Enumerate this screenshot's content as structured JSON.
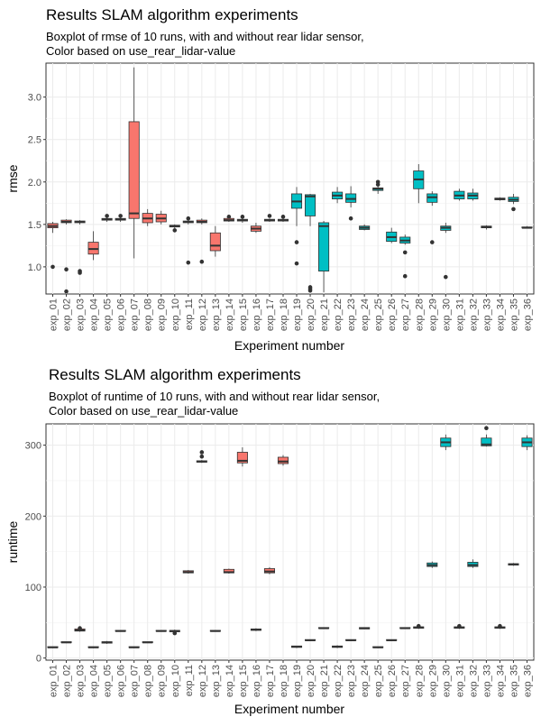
{
  "colors": {
    "false": "#F8766D",
    "true": "#00BFC4"
  },
  "chart_data": [
    {
      "type": "boxplot",
      "title": "Results SLAM algorithm experiments",
      "subtitle_lines": [
        "Boxplot of rmse of 10 runs, with and without rear lidar sensor,",
        "Color based on use_rear_lidar-value"
      ],
      "xlabel": "Experiment number",
      "ylabel": "rmse",
      "ylim": [
        0.68,
        3.4
      ],
      "yticks": [
        1.0,
        1.5,
        2.0,
        2.5,
        3.0
      ],
      "ytick_labels": [
        "1.0",
        "1.5",
        "2.0",
        "2.5",
        "3.0"
      ],
      "grid": true,
      "legend": "none",
      "categories": [
        "exp_01",
        "exp_02",
        "exp_03",
        "exp_04",
        "exp_05",
        "exp_06",
        "exp_07",
        "exp_08",
        "exp_09",
        "exp_10",
        "exp_11",
        "exp_12",
        "exp_13",
        "exp_14",
        "exp_15",
        "exp_16",
        "exp_17",
        "exp_18",
        "exp_19",
        "exp_20",
        "exp_21",
        "exp_22",
        "exp_23",
        "exp_24",
        "exp_25",
        "exp_26",
        "exp_27",
        "exp_28",
        "exp_29",
        "exp_30",
        "exp_31",
        "exp_32",
        "exp_33",
        "exp_34",
        "exp_35",
        "exp_36"
      ],
      "use_rear_lidar": [
        false,
        false,
        false,
        false,
        false,
        false,
        false,
        false,
        false,
        false,
        false,
        false,
        false,
        false,
        false,
        false,
        false,
        false,
        true,
        true,
        true,
        true,
        true,
        true,
        true,
        true,
        true,
        true,
        true,
        true,
        true,
        true,
        true,
        true,
        true,
        true
      ],
      "boxes": [
        {
          "min": 1.4,
          "q1": 1.46,
          "median": 1.48,
          "q3": 1.51,
          "max": 1.53,
          "outliers": [
            1.0
          ]
        },
        {
          "min": 1.5,
          "q1": 1.52,
          "median": 1.53,
          "q3": 1.55,
          "max": 1.56,
          "outliers": [
            0.97,
            0.71
          ]
        },
        {
          "min": 1.5,
          "q1": 1.52,
          "median": 1.53,
          "q3": 1.54,
          "max": 1.55,
          "outliers": [
            0.95,
            0.93
          ]
        },
        {
          "min": 1.08,
          "q1": 1.15,
          "median": 1.21,
          "q3": 1.29,
          "max": 1.42,
          "outliers": []
        },
        {
          "min": 1.53,
          "q1": 1.55,
          "median": 1.56,
          "q3": 1.57,
          "max": 1.59,
          "outliers": [
            1.6
          ]
        },
        {
          "min": 1.53,
          "q1": 1.55,
          "median": 1.56,
          "q3": 1.57,
          "max": 1.58,
          "outliers": [
            1.6
          ]
        },
        {
          "min": 1.1,
          "q1": 1.57,
          "median": 1.63,
          "q3": 2.71,
          "max": 3.35,
          "outliers": []
        },
        {
          "min": 1.48,
          "q1": 1.52,
          "median": 1.57,
          "q3": 1.63,
          "max": 1.68,
          "outliers": []
        },
        {
          "min": 1.5,
          "q1": 1.53,
          "median": 1.57,
          "q3": 1.62,
          "max": 1.66,
          "outliers": []
        },
        {
          "min": 1.45,
          "q1": 1.47,
          "median": 1.48,
          "q3": 1.49,
          "max": 1.5,
          "outliers": [
            1.43
          ]
        },
        {
          "min": 1.5,
          "q1": 1.52,
          "median": 1.53,
          "q3": 1.54,
          "max": 1.55,
          "outliers": [
            1.57,
            1.05
          ]
        },
        {
          "min": 1.5,
          "q1": 1.52,
          "median": 1.53,
          "q3": 1.55,
          "max": 1.57,
          "outliers": [
            1.06
          ]
        },
        {
          "min": 1.12,
          "q1": 1.19,
          "median": 1.25,
          "q3": 1.4,
          "max": 1.48,
          "outliers": []
        },
        {
          "min": 1.53,
          "q1": 1.54,
          "median": 1.55,
          "q3": 1.57,
          "max": 1.58,
          "outliers": [
            1.59
          ]
        },
        {
          "min": 1.52,
          "q1": 1.54,
          "median": 1.55,
          "q3": 1.56,
          "max": 1.57,
          "outliers": [
            1.59
          ]
        },
        {
          "min": 1.4,
          "q1": 1.42,
          "median": 1.45,
          "q3": 1.48,
          "max": 1.52,
          "outliers": []
        },
        {
          "min": 1.53,
          "q1": 1.54,
          "median": 1.55,
          "q3": 1.56,
          "max": 1.57,
          "outliers": [
            1.6
          ]
        },
        {
          "min": 1.53,
          "q1": 1.54,
          "median": 1.55,
          "q3": 1.56,
          "max": 1.57,
          "outliers": [
            1.59
          ]
        },
        {
          "min": 1.48,
          "q1": 1.69,
          "median": 1.77,
          "q3": 1.86,
          "max": 1.94,
          "outliers": [
            1.29,
            1.04
          ]
        },
        {
          "min": 1.48,
          "q1": 1.6,
          "median": 1.83,
          "q3": 1.85,
          "max": 1.86,
          "outliers": [
            0.76,
            0.74,
            0.72
          ]
        },
        {
          "min": 0.7,
          "q1": 0.95,
          "median": 1.48,
          "q3": 1.52,
          "max": 1.54,
          "outliers": []
        },
        {
          "min": 1.75,
          "q1": 1.8,
          "median": 1.84,
          "q3": 1.88,
          "max": 1.94,
          "outliers": []
        },
        {
          "min": 1.7,
          "q1": 1.76,
          "median": 1.8,
          "q3": 1.86,
          "max": 1.95,
          "outliers": [
            1.57
          ]
        },
        {
          "min": 1.43,
          "q1": 1.44,
          "median": 1.46,
          "q3": 1.48,
          "max": 1.5,
          "outliers": []
        },
        {
          "min": 1.86,
          "q1": 1.9,
          "median": 1.92,
          "q3": 1.93,
          "max": 1.95,
          "outliers": [
            2.0,
            1.97
          ]
        },
        {
          "min": 1.28,
          "q1": 1.3,
          "median": 1.35,
          "q3": 1.41,
          "max": 1.46,
          "outliers": []
        },
        {
          "min": 1.26,
          "q1": 1.28,
          "median": 1.31,
          "q3": 1.35,
          "max": 1.38,
          "outliers": [
            1.17,
            0.89
          ]
        },
        {
          "min": 1.75,
          "q1": 1.92,
          "median": 2.03,
          "q3": 2.13,
          "max": 2.21,
          "outliers": []
        },
        {
          "min": 1.72,
          "q1": 1.76,
          "median": 1.82,
          "q3": 1.86,
          "max": 1.89,
          "outliers": [
            1.29
          ]
        },
        {
          "min": 1.4,
          "q1": 1.43,
          "median": 1.46,
          "q3": 1.48,
          "max": 1.52,
          "outliers": [
            0.88
          ]
        },
        {
          "min": 1.78,
          "q1": 1.8,
          "median": 1.84,
          "q3": 1.89,
          "max": 1.92,
          "outliers": []
        },
        {
          "min": 1.78,
          "q1": 1.8,
          "median": 1.84,
          "q3": 1.87,
          "max": 1.92,
          "outliers": []
        },
        {
          "min": 1.44,
          "q1": 1.46,
          "median": 1.47,
          "q3": 1.48,
          "max": 1.49,
          "outliers": []
        },
        {
          "min": 1.78,
          "q1": 1.79,
          "median": 1.8,
          "q3": 1.81,
          "max": 1.82,
          "outliers": []
        },
        {
          "min": 1.74,
          "q1": 1.77,
          "median": 1.79,
          "q3": 1.82,
          "max": 1.86,
          "outliers": [
            1.68
          ]
        },
        {
          "min": 1.45,
          "q1": 1.46,
          "median": 1.46,
          "q3": 1.47,
          "max": 1.48,
          "outliers": []
        }
      ]
    },
    {
      "type": "boxplot",
      "title": "Results SLAM algorithm experiments",
      "subtitle_lines": [
        "Boxplot of runtime of 10 runs, with and without rear lidar sensor,",
        "Color based on use_rear_lidar-value"
      ],
      "xlabel": "Experiment number",
      "ylabel": "runtime",
      "ylim": [
        -3,
        330
      ],
      "yticks": [
        0,
        100,
        200,
        300
      ],
      "ytick_labels": [
        "0",
        "100",
        "200",
        "300"
      ],
      "grid": true,
      "legend": "none",
      "categories": [
        "exp_01",
        "exp_02",
        "exp_03",
        "exp_04",
        "exp_05",
        "exp_06",
        "exp_07",
        "exp_08",
        "exp_09",
        "exp_10",
        "exp_11",
        "exp_12",
        "exp_13",
        "exp_14",
        "exp_15",
        "exp_16",
        "exp_17",
        "exp_18",
        "exp_19",
        "exp_20",
        "exp_21",
        "exp_22",
        "exp_23",
        "exp_24",
        "exp_25",
        "exp_26",
        "exp_27",
        "exp_28",
        "exp_29",
        "exp_30",
        "exp_31",
        "exp_32",
        "exp_33",
        "exp_34",
        "exp_35",
        "exp_36"
      ],
      "use_rear_lidar": [
        false,
        false,
        false,
        false,
        false,
        false,
        false,
        false,
        false,
        false,
        false,
        false,
        false,
        false,
        false,
        false,
        false,
        false,
        true,
        true,
        true,
        true,
        true,
        true,
        true,
        true,
        true,
        true,
        true,
        true,
        true,
        true,
        true,
        true,
        true,
        true
      ],
      "boxes": [
        {
          "min": 14,
          "q1": 15,
          "median": 15,
          "q3": 16,
          "max": 16,
          "outliers": []
        },
        {
          "min": 21,
          "q1": 22,
          "median": 22,
          "q3": 23,
          "max": 23,
          "outliers": []
        },
        {
          "min": 37,
          "q1": 38,
          "median": 39,
          "q3": 41,
          "max": 42,
          "outliers": [
            42
          ]
        },
        {
          "min": 14,
          "q1": 15,
          "median": 15,
          "q3": 16,
          "max": 16,
          "outliers": []
        },
        {
          "min": 20,
          "q1": 21,
          "median": 22,
          "q3": 23,
          "max": 24,
          "outliers": []
        },
        {
          "min": 37,
          "q1": 38,
          "median": 38,
          "q3": 39,
          "max": 39,
          "outliers": []
        },
        {
          "min": 14,
          "q1": 15,
          "median": 15,
          "q3": 16,
          "max": 16,
          "outliers": []
        },
        {
          "min": 21,
          "q1": 22,
          "median": 22,
          "q3": 23,
          "max": 23,
          "outliers": []
        },
        {
          "min": 37,
          "q1": 38,
          "median": 38,
          "q3": 39,
          "max": 39,
          "outliers": []
        },
        {
          "min": 35,
          "q1": 37,
          "median": 38,
          "q3": 39,
          "max": 40,
          "outliers": [
            35
          ]
        },
        {
          "min": 119,
          "q1": 120,
          "median": 121,
          "q3": 123,
          "max": 124,
          "outliers": []
        },
        {
          "min": 275,
          "q1": 276,
          "median": 277,
          "q3": 278,
          "max": 279,
          "outliers": [
            290,
            284
          ]
        },
        {
          "min": 37,
          "q1": 38,
          "median": 38,
          "q3": 39,
          "max": 39,
          "outliers": []
        },
        {
          "min": 119,
          "q1": 120,
          "median": 121,
          "q3": 125,
          "max": 126,
          "outliers": []
        },
        {
          "min": 270,
          "q1": 275,
          "median": 278,
          "q3": 290,
          "max": 297,
          "outliers": []
        },
        {
          "min": 38,
          "q1": 39,
          "median": 40,
          "q3": 41,
          "max": 42,
          "outliers": []
        },
        {
          "min": 118,
          "q1": 120,
          "median": 122,
          "q3": 126,
          "max": 128,
          "outliers": []
        },
        {
          "min": 271,
          "q1": 274,
          "median": 277,
          "q3": 283,
          "max": 286,
          "outliers": []
        },
        {
          "min": 14,
          "q1": 15,
          "median": 16,
          "q3": 17,
          "max": 17,
          "outliers": []
        },
        {
          "min": 24,
          "q1": 25,
          "median": 25,
          "q3": 26,
          "max": 26,
          "outliers": []
        },
        {
          "min": 41,
          "q1": 42,
          "median": 42,
          "q3": 43,
          "max": 43,
          "outliers": []
        },
        {
          "min": 14,
          "q1": 15,
          "median": 16,
          "q3": 17,
          "max": 18,
          "outliers": []
        },
        {
          "min": 24,
          "q1": 25,
          "median": 25,
          "q3": 26,
          "max": 26,
          "outliers": []
        },
        {
          "min": 41,
          "q1": 41,
          "median": 42,
          "q3": 43,
          "max": 43,
          "outliers": []
        },
        {
          "min": 14,
          "q1": 15,
          "median": 15,
          "q3": 16,
          "max": 16,
          "outliers": []
        },
        {
          "min": 24,
          "q1": 25,
          "median": 25,
          "q3": 26,
          "max": 26,
          "outliers": []
        },
        {
          "min": 41,
          "q1": 42,
          "median": 42,
          "q3": 43,
          "max": 43,
          "outliers": []
        },
        {
          "min": 41,
          "q1": 42,
          "median": 43,
          "q3": 44,
          "max": 45,
          "outliers": [
            45
          ]
        },
        {
          "min": 127,
          "q1": 129,
          "median": 131,
          "q3": 134,
          "max": 136,
          "outliers": []
        },
        {
          "min": 293,
          "q1": 298,
          "median": 304,
          "q3": 310,
          "max": 315,
          "outliers": []
        },
        {
          "min": 41,
          "q1": 42,
          "median": 43,
          "q3": 44,
          "max": 45,
          "outliers": [
            45
          ]
        },
        {
          "min": 127,
          "q1": 129,
          "median": 131,
          "q3": 135,
          "max": 139,
          "outliers": []
        },
        {
          "min": 298,
          "q1": 299,
          "median": 301,
          "q3": 310,
          "max": 315,
          "outliers": [
            324
          ]
        },
        {
          "min": 41,
          "q1": 42,
          "median": 43,
          "q3": 44,
          "max": 45,
          "outliers": [
            45
          ]
        },
        {
          "min": 130,
          "q1": 131,
          "median": 132,
          "q3": 133,
          "max": 134,
          "outliers": []
        },
        {
          "min": 293,
          "q1": 298,
          "median": 304,
          "q3": 310,
          "max": 314,
          "outliers": []
        }
      ]
    }
  ]
}
